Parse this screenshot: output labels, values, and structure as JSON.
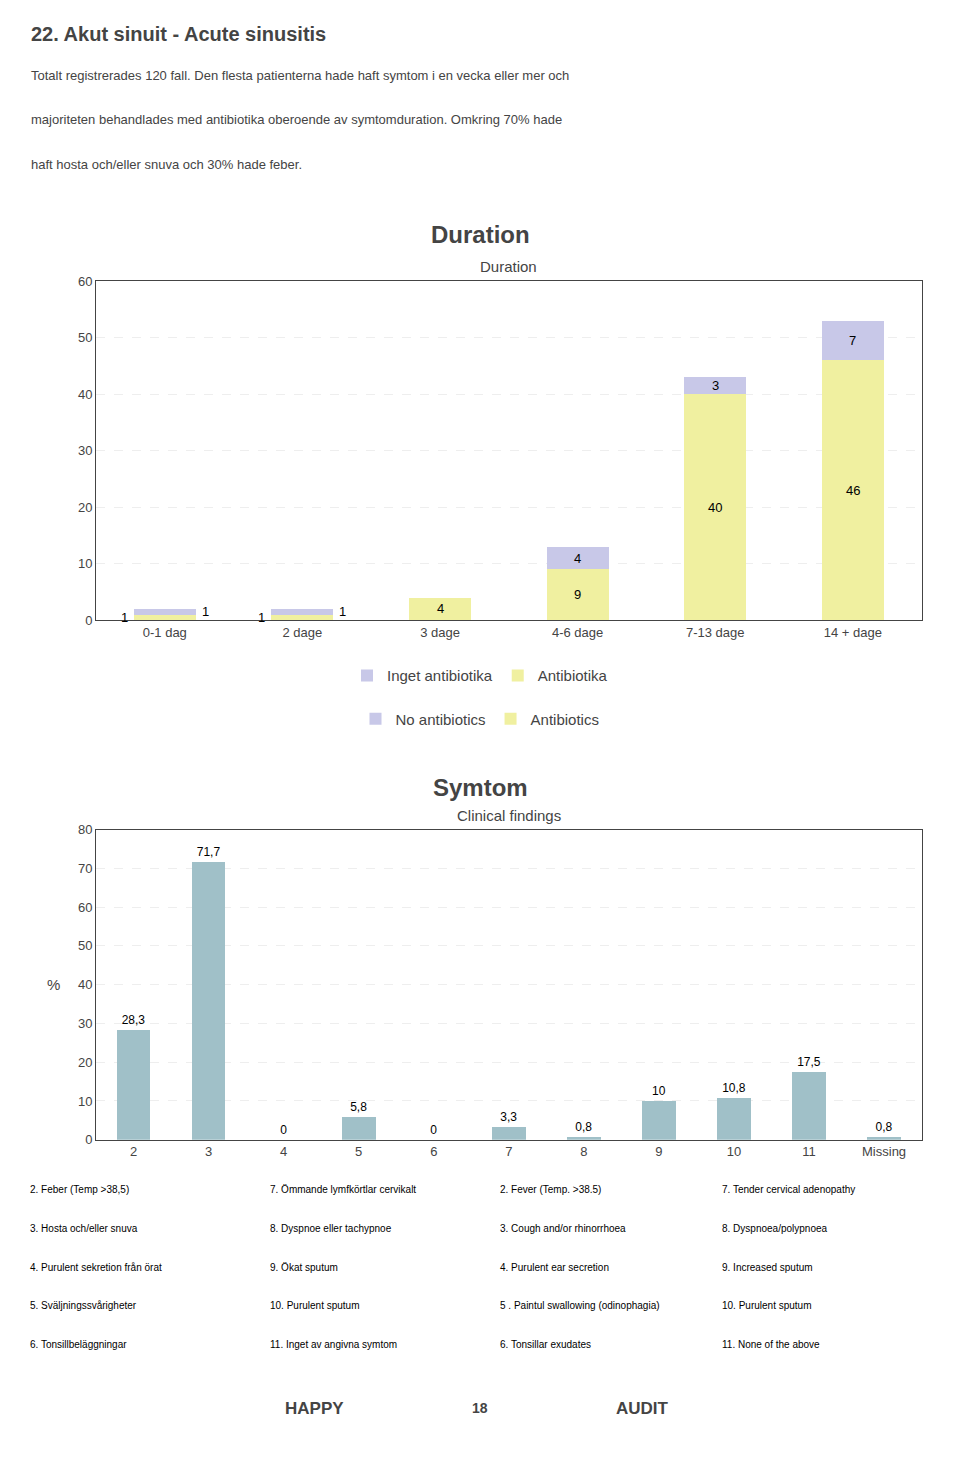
{
  "title": "22. Akut sinuit - Acute sinusitis",
  "paragraph": [
    "Totalt registrerades 120 fall. Den flesta patienterna hade haft symtom i en vecka eller mer och",
    "majoriteten behandlades med antibiotika oberoende av symtomduration. Omkring 70% hade",
    "haft hosta och/eller snuva och 30% hade feber."
  ],
  "chart_data": [
    {
      "type": "bar",
      "title": "Duration",
      "subtitle": "Duration",
      "categories": [
        "0-1 dag",
        "2 dage",
        "3 dage",
        "4-6 dage",
        "7-13 dage",
        "14 + dage"
      ],
      "stacked": true,
      "series": [
        {
          "name": "Antibiotika",
          "color": "#f0f0a0",
          "values": [
            1,
            1,
            4,
            9,
            40,
            46
          ]
        },
        {
          "name": "Inget antibiotika",
          "color": "#c8c8e8",
          "values": [
            1,
            1,
            0,
            4,
            3,
            7
          ]
        }
      ],
      "legend_translations": [
        "Antibiotics",
        "No antibiotics"
      ],
      "legend": "bottom",
      "ylim": [
        0,
        60
      ],
      "yticks": [
        0,
        10,
        20,
        30,
        40,
        50,
        60
      ],
      "grid": true,
      "data_labels": true
    },
    {
      "type": "bar",
      "title": "Symtom",
      "subtitle": "Clinical findings",
      "ylabel": "%",
      "categories": [
        "2",
        "3",
        "4",
        "5",
        "6",
        "7",
        "8",
        "9",
        "10",
        "11",
        "Missing"
      ],
      "values": [
        28.3,
        71.7,
        0.0,
        5.8,
        0.0,
        3.3,
        0.8,
        10.0,
        10.8,
        17.5,
        0.8
      ],
      "value_labels": [
        "28,3",
        "71,7",
        "0",
        "5,8",
        "0",
        "3,3",
        "0,8",
        "10",
        "10,8",
        "17,5",
        "0,8"
      ],
      "color": "#a0c0c8",
      "ylim": [
        0,
        80
      ],
      "yticks": [
        0,
        10,
        20,
        30,
        40,
        50,
        60,
        70,
        80
      ],
      "grid": true,
      "data_labels": true
    }
  ],
  "footnotes": [
    [
      "2. Feber (Temp >38,5)",
      "3. Hosta och/eller snuva",
      "4. Purulent sekretion från örat",
      "5. Sväljningssvårigheter",
      "6. Tonsillbeläggningar"
    ],
    [
      "7. Ömmande lymfkörtlar cervikalt",
      "8. Dyspnoe eller tachypnoe",
      "9. Ökat sputum",
      "10. Purulent sputum",
      "11. Inget av angivna symtom"
    ],
    [
      "2. Fever (Temp. >38.5)",
      "3. Cough and/or rhinorrhoea",
      "4. Purulent ear secretion",
      "5 . Paintul swallowing (odinophagia)",
      "6. Tonsillar exudates"
    ],
    [
      "7. Tender cervical adenopathy",
      "8. Dyspnoea/polypnoea",
      "9. Increased sputum",
      "10. Purulent sputum",
      "11. None of the above"
    ]
  ],
  "logo": [
    "HAPPY",
    "18",
    "AUDIT"
  ]
}
